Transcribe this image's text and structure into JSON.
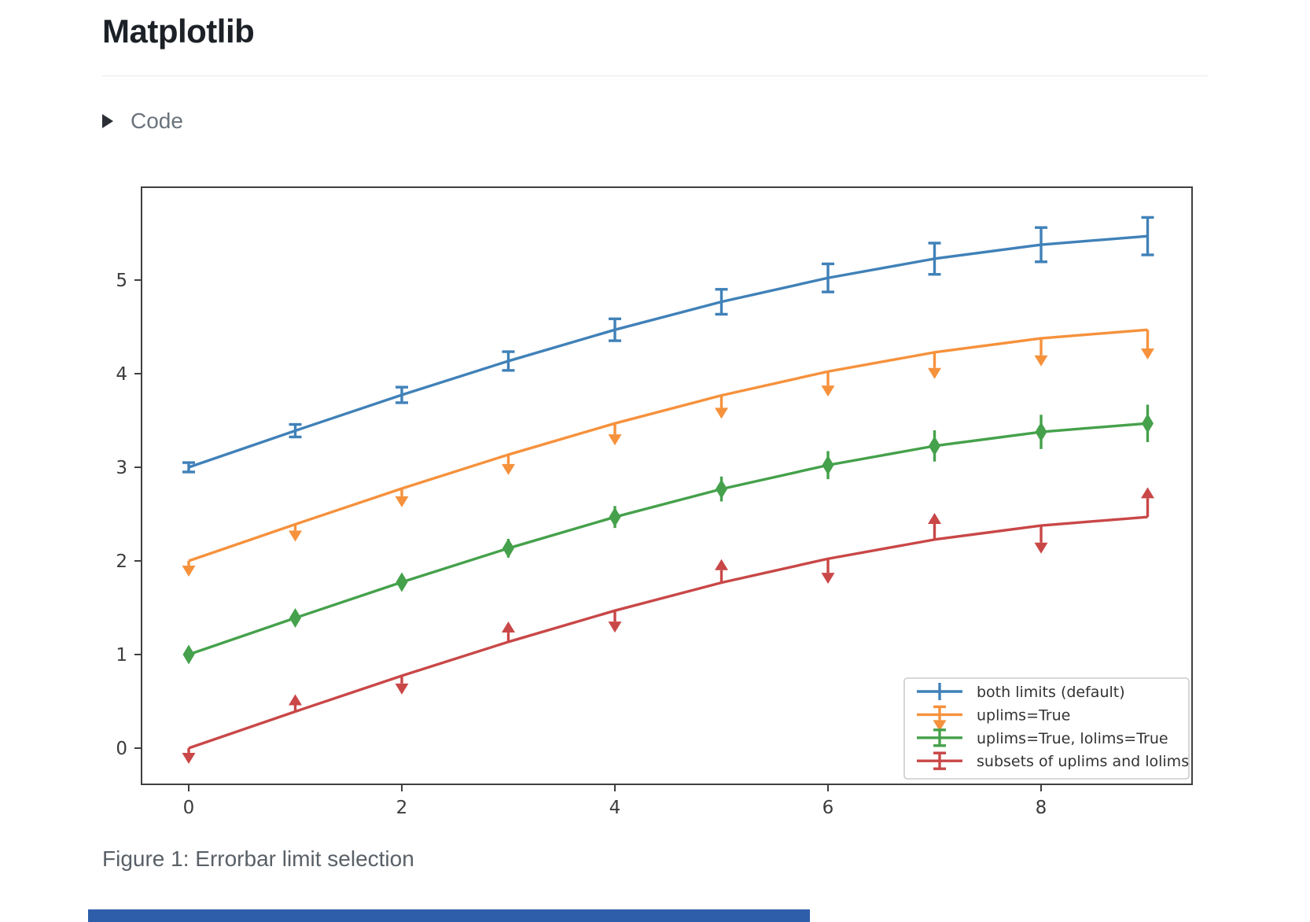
{
  "page": {
    "title": "Matplotlib",
    "code_toggle": {
      "label": "Code",
      "icon": "triangle-right-icon"
    },
    "caption": "Figure 1: Errorbar limit selection"
  },
  "chart_data": {
    "type": "line",
    "title": "",
    "xlabel": "",
    "ylabel": "",
    "x": [
      0,
      1,
      2,
      3,
      4,
      5,
      6,
      7,
      8,
      9
    ],
    "xticks": [
      0,
      2,
      4,
      6,
      8
    ],
    "yticks": [
      0,
      1,
      2,
      3,
      4,
      5
    ],
    "xlim": [
      -0.45,
      9.45
    ],
    "ylim": [
      -0.39,
      5.99
    ],
    "grid": false,
    "legend_position": "lower right",
    "yerr": [
      0.05,
      0.067,
      0.083,
      0.1,
      0.117,
      0.133,
      0.15,
      0.167,
      0.183,
      0.2
    ],
    "series": [
      {
        "name": "both limits (default)",
        "color": "#4081b8",
        "limits": "both",
        "values": [
          3.0,
          3.391,
          3.773,
          4.135,
          4.469,
          4.768,
          5.023,
          5.228,
          5.378,
          5.469
        ]
      },
      {
        "name": "uplims=True",
        "color": "#f6913c",
        "limits": "uplims",
        "values": [
          2.0,
          2.391,
          2.773,
          3.135,
          3.469,
          3.768,
          4.023,
          4.228,
          4.378,
          4.469
        ]
      },
      {
        "name": "uplims=True, lolims=True",
        "color": "#45a14b",
        "limits": "uplims+lolims",
        "values": [
          1.0,
          1.391,
          1.773,
          2.135,
          2.469,
          2.768,
          3.023,
          3.228,
          3.378,
          3.469
        ]
      },
      {
        "name": "subsets of uplims and lolims",
        "color": "#c94747",
        "limits": "alternating",
        "uplims_idx": [
          0,
          2,
          4,
          6,
          8
        ],
        "lolims_idx": [
          1,
          3,
          5,
          7,
          9
        ],
        "values": [
          0.0,
          0.391,
          0.773,
          1.135,
          1.469,
          1.768,
          2.023,
          2.228,
          2.378,
          2.469
        ]
      }
    ],
    "colors": {
      "spine": "#3f3f3f",
      "tick_label": "#3c3c3c",
      "legend_border": "#cccccc",
      "legend_text": "#333333"
    }
  }
}
